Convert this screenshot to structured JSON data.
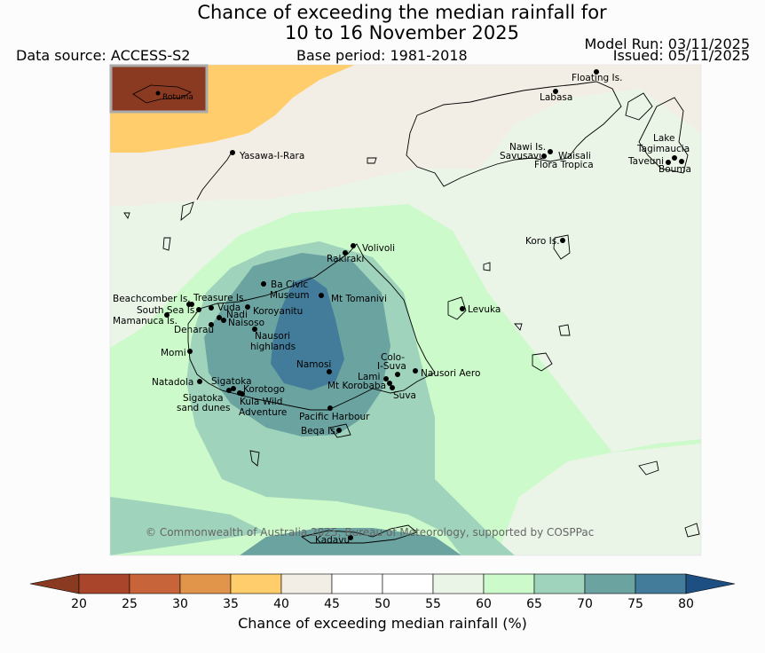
{
  "title": {
    "line1": "Chance of exceeding the median rainfall for",
    "line2": "10 to 16 November 2025"
  },
  "header": {
    "data_source": "Data source: ACCESS-S2",
    "base_period": "Base period: 1981-2018",
    "model_run": "Model Run: 03/11/2025",
    "issued": "Issued: 05/11/2025"
  },
  "inset_label": "Rotuma",
  "copyright": "© Commonwealth of Australia 2025, Bureau of Meteorology, supported by COSPPac",
  "places": [
    "Floating Is.",
    "Labasa",
    "Yasawa-I-Rara",
    "Nawi Is.",
    "Savusavu",
    "Waisali",
    "Flora Tropica",
    "Lake",
    "Tagimaucia",
    "Taveuni",
    "Bouma",
    "Koro Is.",
    "Volivoli",
    "Rakiraki",
    "Ba Civic",
    "Museum",
    "Mt Tomanivi",
    "Beachcomber Is.",
    "Treasure Is.",
    "South Sea Is.",
    "Vuda",
    "Koroyanitu",
    "Nadi",
    "Mamanuca Is.",
    "Naisoso",
    "Denarau",
    "Nausori",
    "highlands",
    "Levuka",
    "Momi",
    "Colo-",
    "I-Suva",
    "Nausori Aero",
    "Namosi",
    "Lami",
    "Mt Korobaba",
    "Suva",
    "Natadola",
    "Sigatoka",
    "Korotogo",
    "Sigatoka",
    "sand dunes",
    "Kula Wild",
    "Adventure",
    "Pacific Harbour",
    "Beqa Is.",
    "Kadavu"
  ],
  "colorbar": {
    "title": "Chance of exceeding median rainfall (%)",
    "ticks": [
      "20",
      "25",
      "30",
      "35",
      "40",
      "45",
      "50",
      "55",
      "60",
      "65",
      "70",
      "75",
      "80"
    ],
    "colors": {
      "below20": "#8b3a22",
      "c20_25": "#a8452b",
      "c25_30": "#c8643a",
      "c30_35": "#e0954a",
      "c35_40": "#ffcd6b",
      "c40_45": "#f3eee5",
      "c45_50": "#ffffff",
      "c50_55": "#ffffff",
      "c55_60": "#eaf5e8",
      "c60_65": "#ccfacb",
      "c65_70": "#9fd3bb",
      "c70_75": "#6ba3a0",
      "c75_80": "#437c9a",
      "above80": "#1d4f83"
    }
  }
}
